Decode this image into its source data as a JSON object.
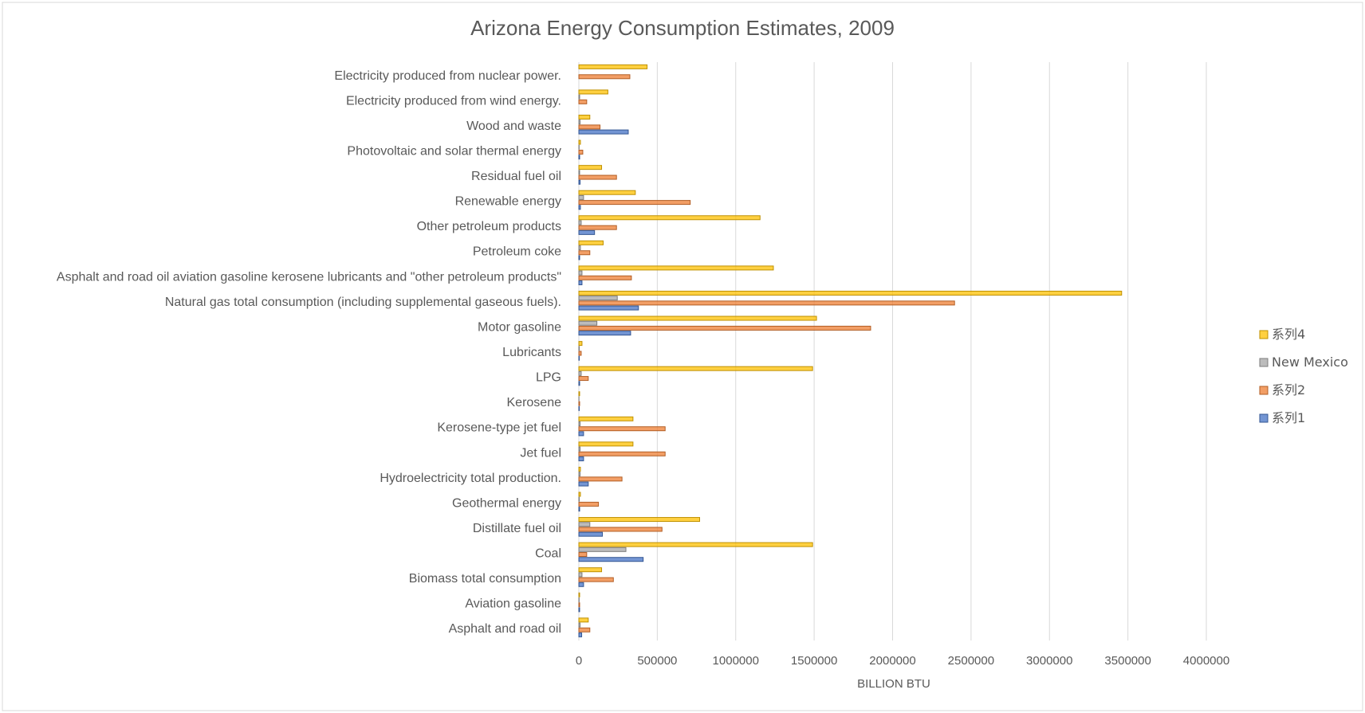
{
  "chart_data": {
    "type": "bar",
    "orientation": "horizontal",
    "title": "Arizona Energy Consumption Estimates, 2009",
    "xlabel": "BILLION BTU",
    "ylabel": "",
    "xlim": [
      0,
      4000000
    ],
    "xticks": [
      "0",
      "500000",
      "1000000",
      "1500000",
      "2000000",
      "2500000",
      "3000000",
      "3500000",
      "4000000"
    ],
    "grid": "vertical",
    "legend_position": "right",
    "categories": [
      "Asphalt and road oil",
      "Aviation gasoline",
      "Biomass total consumption",
      "Coal",
      "Distillate fuel oil",
      "Geothermal energy",
      "Hydroelectricity total production.",
      "Jet fuel",
      "Kerosene-type jet fuel",
      "Kerosene",
      "LPG",
      "Lubricants",
      "Motor gasoline",
      "Natural gas total consumption (including supplemental gaseous fuels).",
      "Asphalt and road oil aviation gasoline kerosene lubricants and \"other petroleum products\"",
      "Petroleum coke",
      "Other petroleum products",
      "Renewable energy",
      "Residual fuel oil",
      "Photovoltaic and solar thermal energy",
      "Wood and waste",
      "Electricity produced from wind energy.",
      "Electricity produced from nuclear power."
    ],
    "series": [
      {
        "name": "系列1",
        "color": "#4472C4",
        "values": [
          18000,
          5000,
          30000,
          410000,
          150000,
          5000,
          60000,
          30000,
          30000,
          3000,
          5000,
          3000,
          330000,
          380000,
          20000,
          5000,
          100000,
          10000,
          8000,
          5000,
          315000,
          0,
          0
        ]
      },
      {
        "name": "系列2",
        "color": "#ED7D31",
        "values": [
          70000,
          5000,
          220000,
          50000,
          530000,
          125000,
          275000,
          550000,
          550000,
          5000,
          60000,
          15000,
          1860000,
          2395000,
          335000,
          70000,
          240000,
          710000,
          240000,
          25000,
          135000,
          50000,
          325000
        ]
      },
      {
        "name": "New Mexico",
        "color": "#A5A5A5",
        "values": [
          8000,
          2000,
          20000,
          300000,
          70000,
          3000,
          8000,
          8000,
          8000,
          1000,
          15000,
          3000,
          115000,
          245000,
          20000,
          10000,
          15000,
          30000,
          5000,
          2000,
          8000,
          5000,
          0
        ]
      },
      {
        "name": "系列4",
        "color": "#FFC000",
        "values": [
          60000,
          5000,
          145000,
          1490000,
          770000,
          10000,
          10000,
          345000,
          345000,
          5000,
          1490000,
          20000,
          1515000,
          3460000,
          1240000,
          155000,
          1155000,
          360000,
          145000,
          10000,
          70000,
          185000,
          435000
        ]
      }
    ]
  }
}
